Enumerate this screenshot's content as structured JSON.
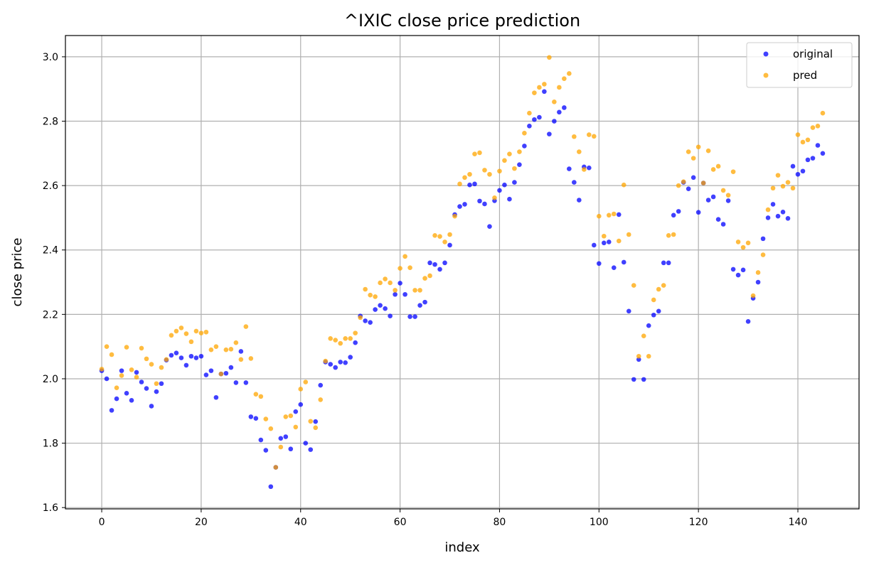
{
  "chart_data": {
    "type": "scatter",
    "title": "^IXIC close price prediction",
    "xlabel": "index",
    "ylabel": "close price",
    "xlim": [
      -7.3,
      152.3
    ],
    "ylim": [
      1.596,
      3.066
    ],
    "xticks": [
      0,
      20,
      40,
      60,
      80,
      100,
      120,
      140
    ],
    "yticks": [
      1.6,
      1.8,
      2.0,
      2.2,
      2.4,
      2.6,
      2.8,
      3.0
    ],
    "xtick_labels": [
      "0",
      "20",
      "40",
      "60",
      "80",
      "100",
      "120",
      "140"
    ],
    "ytick_labels": [
      "1.6",
      "1.8",
      "2.0",
      "2.2",
      "2.4",
      "2.6",
      "2.8",
      "3.0"
    ],
    "grid": true,
    "legend_position": "top-right",
    "series": [
      {
        "name": "original",
        "color": "#0000ff",
        "x": [
          0,
          1,
          2,
          3,
          4,
          5,
          6,
          7,
          8,
          9,
          10,
          11,
          12,
          13,
          14,
          15,
          16,
          17,
          18,
          19,
          20,
          21,
          22,
          23,
          24,
          25,
          26,
          27,
          28,
          29,
          30,
          31,
          32,
          33,
          34,
          35,
          36,
          37,
          38,
          39,
          40,
          41,
          42,
          43,
          44,
          45,
          46,
          47,
          48,
          49,
          50,
          51,
          52,
          53,
          54,
          55,
          56,
          57,
          58,
          59,
          60,
          61,
          62,
          63,
          64,
          65,
          66,
          67,
          68,
          69,
          70,
          71,
          72,
          73,
          74,
          75,
          76,
          77,
          78,
          79,
          80,
          81,
          82,
          83,
          84,
          85,
          86,
          87,
          88,
          89,
          90,
          91,
          92,
          93,
          94,
          95,
          96,
          97,
          98,
          99,
          100,
          101,
          102,
          103,
          104,
          105,
          106,
          107,
          108,
          109,
          110,
          111,
          112,
          113,
          114,
          115,
          116,
          117,
          118,
          119,
          120,
          121,
          122,
          123,
          124,
          125,
          126,
          127,
          128,
          129,
          130,
          131,
          132,
          133,
          134,
          135,
          136,
          137,
          138,
          139,
          140,
          141,
          142,
          143,
          144,
          145
        ],
        "y": [
          2.025,
          2.0,
          1.902,
          1.938,
          2.025,
          1.955,
          1.933,
          2.02,
          1.99,
          1.97,
          1.915,
          1.96,
          1.985,
          2.058,
          2.073,
          2.08,
          2.065,
          2.042,
          2.07,
          2.065,
          2.07,
          2.012,
          2.025,
          1.942,
          2.015,
          2.017,
          2.035,
          1.988,
          2.085,
          1.988,
          1.882,
          1.877,
          1.81,
          1.778,
          1.665,
          1.725,
          1.815,
          1.82,
          1.782,
          1.898,
          1.92,
          1.8,
          1.78,
          1.867,
          1.98,
          2.052,
          2.045,
          2.035,
          2.052,
          2.05,
          2.067,
          2.112,
          2.195,
          2.18,
          2.175,
          2.215,
          2.228,
          2.218,
          2.195,
          2.262,
          2.297,
          2.262,
          2.193,
          2.193,
          2.228,
          2.238,
          2.36,
          2.355,
          2.34,
          2.36,
          2.415,
          2.51,
          2.535,
          2.542,
          2.602,
          2.605,
          2.552,
          2.543,
          2.473,
          2.553,
          2.585,
          2.602,
          2.558,
          2.61,
          2.665,
          2.723,
          2.785,
          2.805,
          2.812,
          2.892,
          2.76,
          2.8,
          2.828,
          2.842,
          2.652,
          2.61,
          2.555,
          2.658,
          2.655,
          2.415,
          2.358,
          2.422,
          2.425,
          2.345,
          2.51,
          2.362,
          2.21,
          1.998,
          2.06,
          1.998,
          2.165,
          2.198,
          2.21,
          2.36,
          2.36,
          2.508,
          2.52,
          2.61,
          2.59,
          2.625,
          2.517,
          2.608,
          2.555,
          2.565,
          2.495,
          2.48,
          2.553,
          2.34,
          2.322,
          2.338,
          2.178,
          2.25,
          2.3,
          2.435,
          2.5,
          2.542,
          2.505,
          2.518,
          2.498,
          2.66,
          2.635,
          2.645,
          2.68,
          2.685,
          2.725,
          2.7
        ]
      },
      {
        "name": "pred",
        "color": "#ffa500",
        "x": [
          0,
          1,
          2,
          3,
          4,
          5,
          6,
          7,
          8,
          9,
          10,
          11,
          12,
          13,
          14,
          15,
          16,
          17,
          18,
          19,
          20,
          21,
          22,
          23,
          24,
          25,
          26,
          27,
          28,
          29,
          30,
          31,
          32,
          33,
          34,
          35,
          36,
          37,
          38,
          39,
          40,
          41,
          42,
          43,
          44,
          45,
          46,
          47,
          48,
          49,
          50,
          51,
          52,
          53,
          54,
          55,
          56,
          57,
          58,
          59,
          60,
          61,
          62,
          63,
          64,
          65,
          66,
          67,
          68,
          69,
          70,
          71,
          72,
          73,
          74,
          75,
          76,
          77,
          78,
          79,
          80,
          81,
          82,
          83,
          84,
          85,
          86,
          87,
          88,
          89,
          90,
          91,
          92,
          93,
          94,
          95,
          96,
          97,
          98,
          99,
          100,
          101,
          102,
          103,
          104,
          105,
          106,
          107,
          108,
          109,
          110,
          111,
          112,
          113,
          114,
          115,
          116,
          117,
          118,
          119,
          120,
          121,
          122,
          123,
          124,
          125,
          126,
          127,
          128,
          129,
          130,
          131,
          132,
          133,
          134,
          135,
          136,
          137,
          138,
          139,
          140,
          141,
          142,
          143,
          144,
          145
        ],
        "y": [
          2.03,
          2.1,
          2.075,
          1.972,
          2.01,
          2.098,
          2.028,
          2.005,
          2.095,
          2.062,
          2.045,
          1.985,
          2.035,
          2.06,
          2.135,
          2.148,
          2.158,
          2.14,
          2.115,
          2.148,
          2.142,
          2.145,
          2.09,
          2.1,
          2.015,
          2.09,
          2.092,
          2.112,
          2.06,
          2.162,
          2.063,
          1.952,
          1.945,
          1.875,
          1.845,
          1.725,
          1.788,
          1.882,
          1.885,
          1.85,
          1.968,
          1.99,
          1.868,
          1.848,
          1.935,
          2.055,
          2.125,
          2.12,
          2.11,
          2.125,
          2.125,
          2.142,
          2.19,
          2.278,
          2.26,
          2.255,
          2.298,
          2.31,
          2.298,
          2.275,
          2.343,
          2.38,
          2.345,
          2.275,
          2.275,
          2.312,
          2.32,
          2.445,
          2.442,
          2.425,
          2.448,
          2.505,
          2.605,
          2.625,
          2.635,
          2.698,
          2.702,
          2.648,
          2.635,
          2.562,
          2.645,
          2.678,
          2.698,
          2.653,
          2.705,
          2.763,
          2.825,
          2.888,
          2.905,
          2.915,
          2.998,
          2.86,
          2.905,
          2.932,
          2.948,
          2.752,
          2.705,
          2.65,
          2.758,
          2.753,
          2.505,
          2.443,
          2.508,
          2.512,
          2.428,
          2.602,
          2.448,
          2.29,
          2.07,
          2.133,
          2.07,
          2.245,
          2.278,
          2.29,
          2.445,
          2.448,
          2.6,
          2.612,
          2.705,
          2.685,
          2.72,
          2.608,
          2.708,
          2.65,
          2.66,
          2.585,
          2.57,
          2.643,
          2.425,
          2.408,
          2.422,
          2.258,
          2.33,
          2.385,
          2.525,
          2.592,
          2.632,
          2.598,
          2.61,
          2.592,
          2.758,
          2.735,
          2.742,
          2.78,
          2.785,
          2.825
        ]
      }
    ]
  }
}
